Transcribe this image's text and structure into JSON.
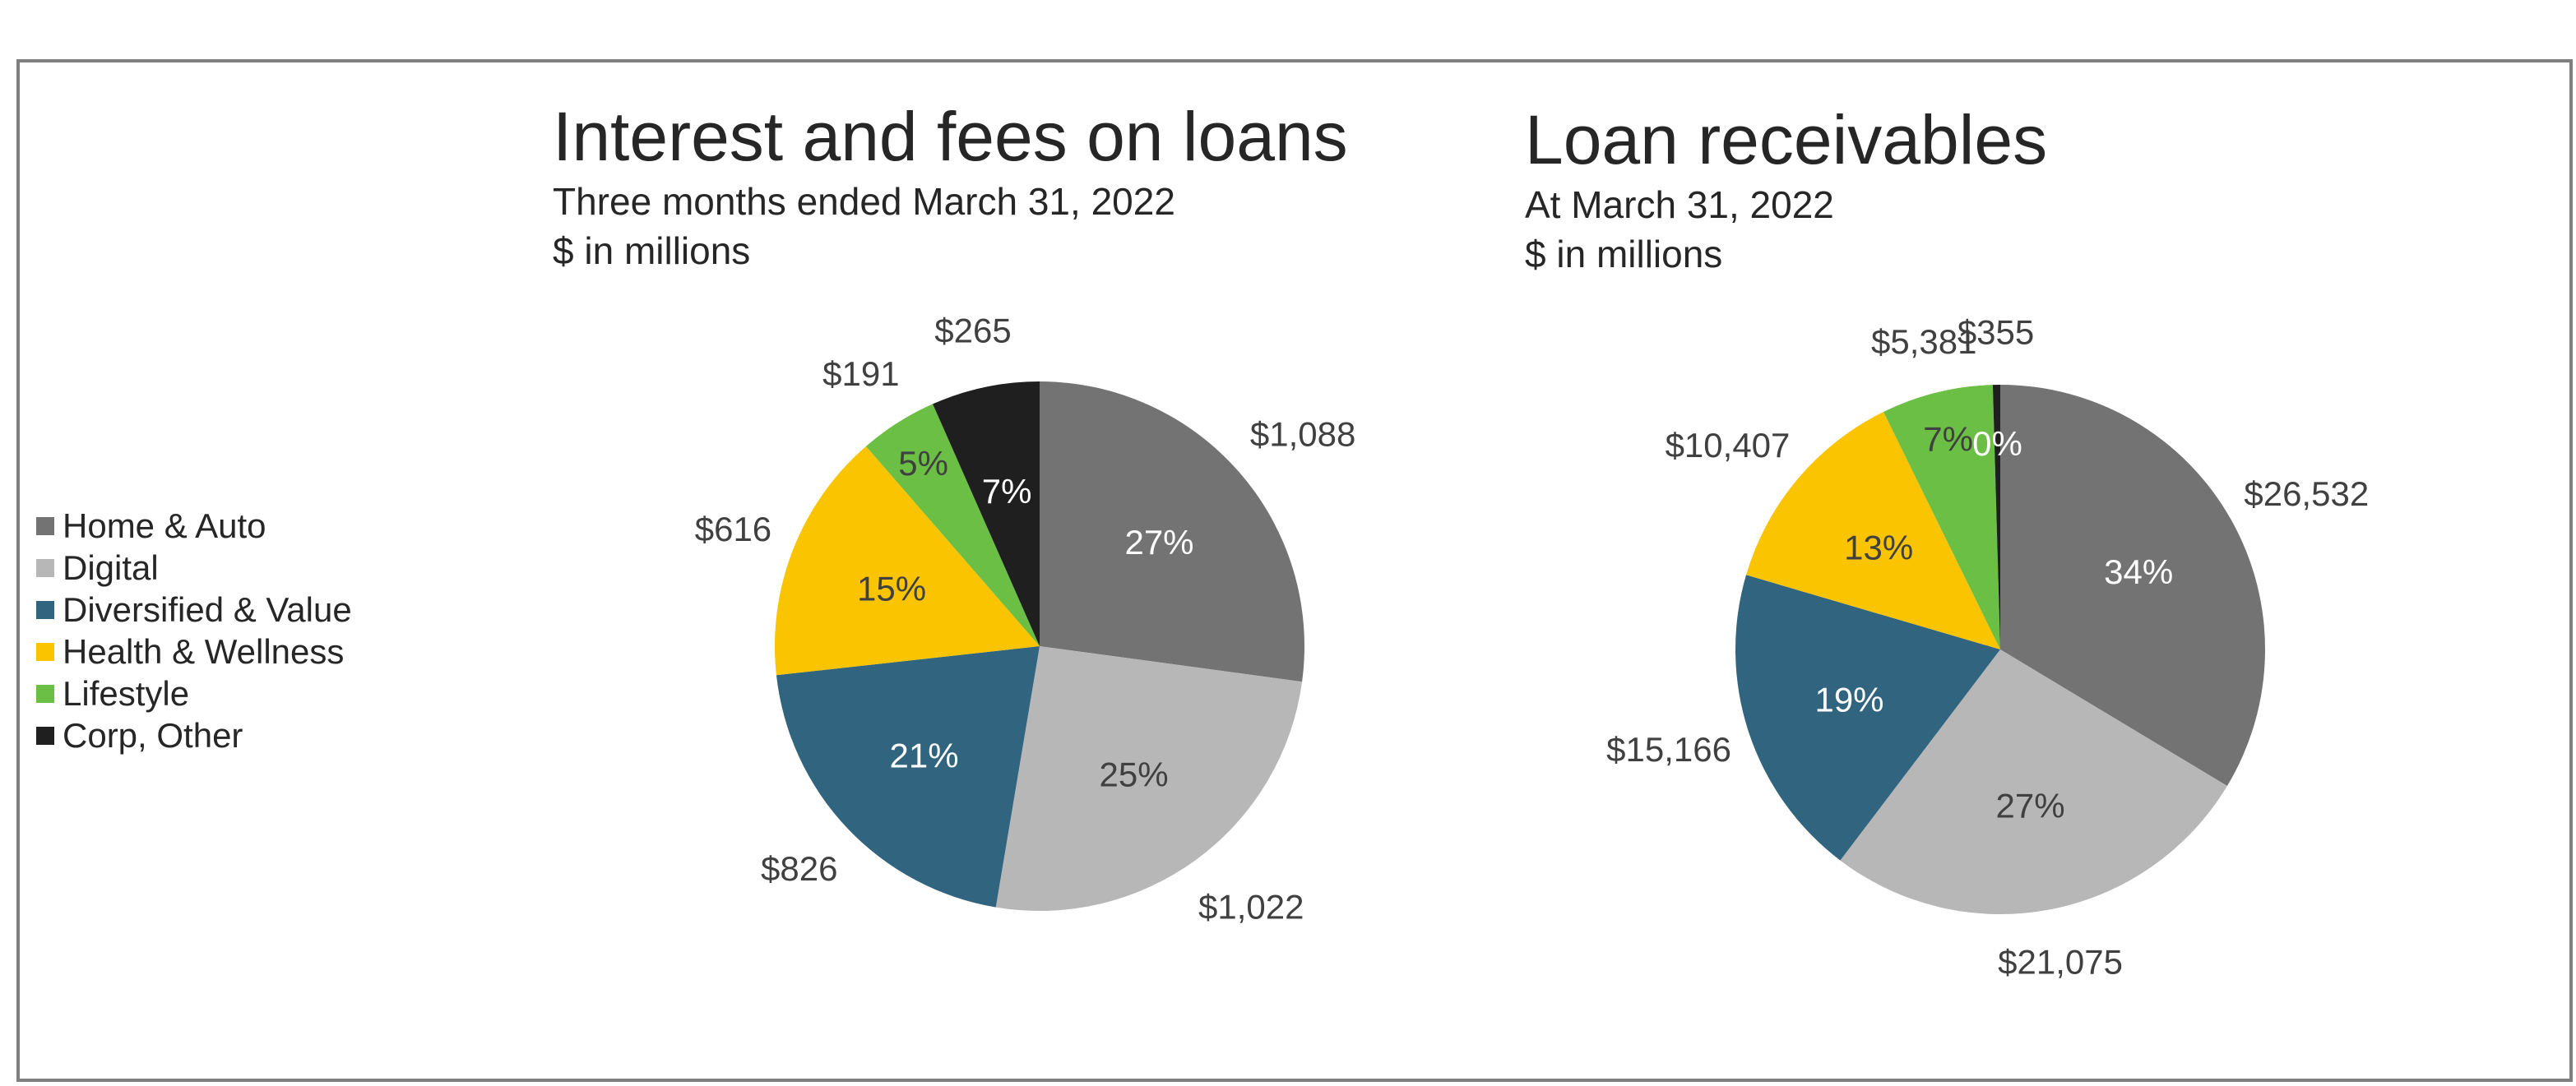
{
  "legend": [
    {
      "name": "Home & Auto",
      "color": "#737373"
    },
    {
      "name": "Digital",
      "color": "#b7b7b7"
    },
    {
      "name": "Diversified & Value",
      "color": "#31647f"
    },
    {
      "name": "Health & Wellness",
      "color": "#fac400"
    },
    {
      "name": "Lifestyle",
      "color": "#6abf44"
    },
    {
      "name": "Corp, Other",
      "color": "#1f1f1f"
    }
  ],
  "chart_data": [
    {
      "type": "pie",
      "title": "Interest and fees on loans",
      "subtitle": "Three months ended March 31, 2022",
      "unit_label": "$ in millions",
      "slices": [
        {
          "name": "Home & Auto",
          "value": 1088,
          "value_label": "$1,088",
          "pct_label": "27%"
        },
        {
          "name": "Digital",
          "value": 1022,
          "value_label": "$1,022",
          "pct_label": "25%"
        },
        {
          "name": "Diversified & Value",
          "value": 826,
          "value_label": "$826",
          "pct_label": "21%"
        },
        {
          "name": "Health & Wellness",
          "value": 616,
          "value_label": "$616",
          "pct_label": "15%"
        },
        {
          "name": "Lifestyle",
          "value": 191,
          "value_label": "$191",
          "pct_label": "5%"
        },
        {
          "name": "Corp, Other",
          "value": 265,
          "value_label": "$265",
          "pct_label": "7%"
        }
      ]
    },
    {
      "type": "pie",
      "title": "Loan receivables",
      "subtitle": "At March 31, 2022",
      "unit_label": "$ in millions",
      "slices": [
        {
          "name": "Home & Auto",
          "value": 26532,
          "value_label": "$26,532",
          "pct_label": "34%"
        },
        {
          "name": "Digital",
          "value": 21075,
          "value_label": "$21,075",
          "pct_label": "27%"
        },
        {
          "name": "Diversified & Value",
          "value": 15166,
          "value_label": "$15,166",
          "pct_label": "19%"
        },
        {
          "name": "Health & Wellness",
          "value": 10407,
          "value_label": "$10,407",
          "pct_label": "13%"
        },
        {
          "name": "Lifestyle",
          "value": 5381,
          "value_label": "$5,381",
          "pct_label": "7%"
        },
        {
          "name": "Corp, Other",
          "value": 355,
          "value_label": "$355",
          "pct_label": "0%"
        }
      ]
    }
  ]
}
